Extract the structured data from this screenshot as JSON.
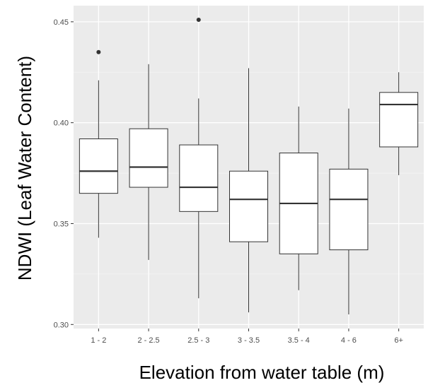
{
  "chart_data": {
    "type": "boxplot",
    "xlabel": "Elevation from water table (m)",
    "ylabel": "NDWI (Leaf Water Content)",
    "ylim": [
      0.298,
      0.458
    ],
    "y_ticks": [
      0.3,
      0.35,
      0.4,
      0.45
    ],
    "y_tick_labels": [
      "0.30",
      "0.35",
      "0.40",
      "0.45"
    ],
    "categories": [
      "1 - 2",
      "2 - 2.5",
      "2.5 - 3",
      "3 - 3.5",
      "3.5 - 4",
      "4 - 6",
      "6+"
    ],
    "boxes": [
      {
        "category": "1 - 2",
        "whisker_low": 0.343,
        "q1": 0.365,
        "median": 0.376,
        "q3": 0.392,
        "whisker_high": 0.421,
        "outliers": [
          0.435
        ]
      },
      {
        "category": "2 - 2.5",
        "whisker_low": 0.332,
        "q1": 0.368,
        "median": 0.378,
        "q3": 0.397,
        "whisker_high": 0.429,
        "outliers": []
      },
      {
        "category": "2.5 - 3",
        "whisker_low": 0.313,
        "q1": 0.356,
        "median": 0.368,
        "q3": 0.389,
        "whisker_high": 0.412,
        "outliers": [
          0.451
        ]
      },
      {
        "category": "3 - 3.5",
        "whisker_low": 0.306,
        "q1": 0.341,
        "median": 0.362,
        "q3": 0.376,
        "whisker_high": 0.427,
        "outliers": []
      },
      {
        "category": "3.5 - 4",
        "whisker_low": 0.317,
        "q1": 0.335,
        "median": 0.36,
        "q3": 0.385,
        "whisker_high": 0.408,
        "outliers": []
      },
      {
        "category": "4 - 6",
        "whisker_low": 0.305,
        "q1": 0.337,
        "median": 0.362,
        "q3": 0.377,
        "whisker_high": 0.407,
        "outliers": []
      },
      {
        "category": "6+",
        "whisker_low": 0.374,
        "q1": 0.388,
        "median": 0.409,
        "q3": 0.415,
        "whisker_high": 0.425,
        "outliers": []
      }
    ],
    "grid": true,
    "colors": {
      "panel_background": "#ebebeb",
      "grid_major": "#ffffff",
      "grid_minor": "#f4f4f4",
      "box_fill": "#ffffff",
      "box_stroke": "#333333",
      "median": "#333333",
      "outlier": "#333333"
    }
  }
}
